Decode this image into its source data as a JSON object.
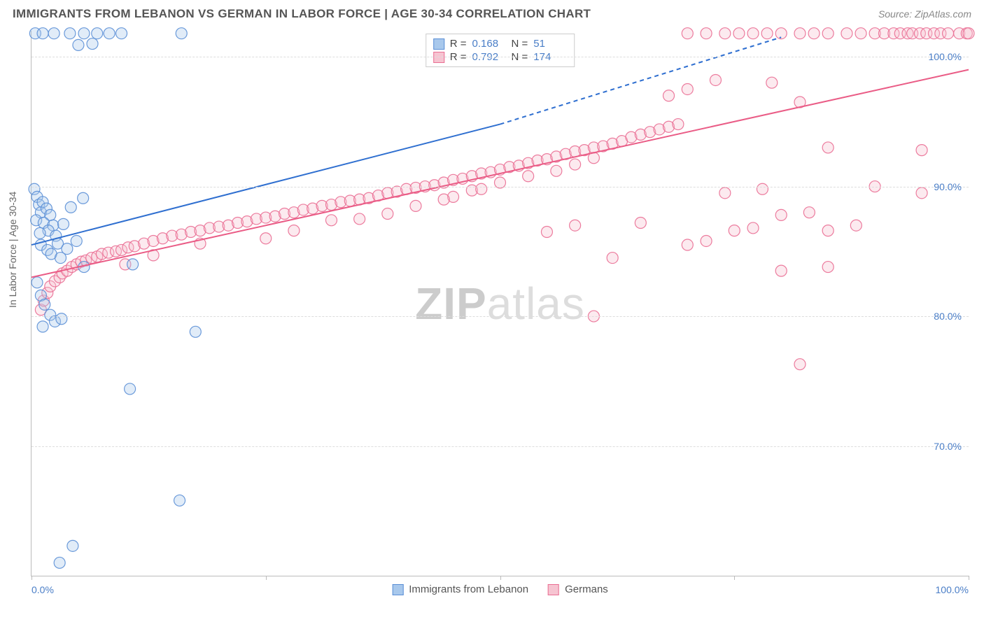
{
  "header": {
    "title": "IMMIGRANTS FROM LEBANON VS GERMAN IN LABOR FORCE | AGE 30-34 CORRELATION CHART",
    "source_prefix": "Source: ",
    "source_name": "ZipAtlas.com"
  },
  "chart": {
    "type": "scatter-correlation",
    "ylabel": "In Labor Force | Age 30-34",
    "background_color": "#ffffff",
    "grid_color": "#dddddd",
    "axis_color": "#bbbbbb",
    "tick_label_color": "#4a7ec7",
    "x_domain": [
      0,
      100
    ],
    "y_domain": [
      60,
      102
    ],
    "x_ticks": [
      0,
      25,
      50,
      75,
      100
    ],
    "x_tick_labels": {
      "0": "0.0%",
      "100": "100.0%"
    },
    "y_ticks": [
      70,
      80,
      90,
      100
    ],
    "y_tick_labels": {
      "70": "70.0%",
      "80": "80.0%",
      "90": "90.0%",
      "100": "100.0%"
    },
    "marker_radius": 8,
    "marker_fill_opacity": 0.35,
    "marker_stroke_opacity": 0.9,
    "line_width": 2,
    "series": {
      "lebanon": {
        "label": "Immigrants from Lebanon",
        "color_fill": "#a8c8ec",
        "color_stroke": "#5b8fd6",
        "line_color": "#2f6fd0",
        "R": "0.168",
        "N": "51",
        "trend_solid": [
          [
            0,
            85.5
          ],
          [
            50,
            94.8
          ]
        ],
        "trend_dashed": [
          [
            50,
            94.8
          ],
          [
            80,
            101.5
          ]
        ],
        "points": [
          [
            0.4,
            101.8
          ],
          [
            1.2,
            101.8
          ],
          [
            2.4,
            101.8
          ],
          [
            4.1,
            101.8
          ],
          [
            5.6,
            101.8
          ],
          [
            7.0,
            101.8
          ],
          [
            8.3,
            101.8
          ],
          [
            9.6,
            101.8
          ],
          [
            16.0,
            101.8
          ],
          [
            5.0,
            100.9
          ],
          [
            6.5,
            101.0
          ],
          [
            0.3,
            89.8
          ],
          [
            0.6,
            89.2
          ],
          [
            0.8,
            88.6
          ],
          [
            1.2,
            88.8
          ],
          [
            1.0,
            88.0
          ],
          [
            1.6,
            88.3
          ],
          [
            2.0,
            87.8
          ],
          [
            0.5,
            87.4
          ],
          [
            1.3,
            87.2
          ],
          [
            2.3,
            87.0
          ],
          [
            1.8,
            86.6
          ],
          [
            0.9,
            86.4
          ],
          [
            2.6,
            86.2
          ],
          [
            3.4,
            87.1
          ],
          [
            4.2,
            88.4
          ],
          [
            5.5,
            89.1
          ],
          [
            1.0,
            85.5
          ],
          [
            1.7,
            85.1
          ],
          [
            2.1,
            84.8
          ],
          [
            2.8,
            85.6
          ],
          [
            3.1,
            84.5
          ],
          [
            3.8,
            85.2
          ],
          [
            4.8,
            85.8
          ],
          [
            0.6,
            82.6
          ],
          [
            5.6,
            83.8
          ],
          [
            1.0,
            81.6
          ],
          [
            1.4,
            80.9
          ],
          [
            2.0,
            80.1
          ],
          [
            2.5,
            79.6
          ],
          [
            1.2,
            79.2
          ],
          [
            3.2,
            79.8
          ],
          [
            10.8,
            84.0
          ],
          [
            17.5,
            78.8
          ],
          [
            10.5,
            74.4
          ],
          [
            15.8,
            65.8
          ],
          [
            4.4,
            62.3
          ],
          [
            3.0,
            61.0
          ]
        ]
      },
      "german": {
        "label": "Germans",
        "color_fill": "#f6c4d1",
        "color_stroke": "#ea6e93",
        "line_color": "#ea5c86",
        "R": "0.792",
        "N": "174",
        "trend_solid": [
          [
            0,
            83.0
          ],
          [
            100,
            99.0
          ]
        ],
        "points": [
          [
            1,
            80.5
          ],
          [
            1.3,
            81.2
          ],
          [
            1.7,
            81.8
          ],
          [
            2,
            82.3
          ],
          [
            2.5,
            82.7
          ],
          [
            3,
            83.0
          ],
          [
            3.3,
            83.3
          ],
          [
            3.8,
            83.5
          ],
          [
            4.3,
            83.8
          ],
          [
            4.8,
            84.0
          ],
          [
            5.3,
            84.2
          ],
          [
            5.8,
            84.3
          ],
          [
            6.4,
            84.5
          ],
          [
            7,
            84.6
          ],
          [
            7.5,
            84.8
          ],
          [
            8.2,
            84.9
          ],
          [
            9,
            85.0
          ],
          [
            9.6,
            85.1
          ],
          [
            10.3,
            85.3
          ],
          [
            11,
            85.4
          ],
          [
            12,
            85.6
          ],
          [
            13,
            85.8
          ],
          [
            14,
            86.0
          ],
          [
            15,
            86.2
          ],
          [
            16,
            86.3
          ],
          [
            17,
            86.5
          ],
          [
            18,
            86.6
          ],
          [
            19,
            86.8
          ],
          [
            20,
            86.9
          ],
          [
            21,
            87.0
          ],
          [
            22,
            87.2
          ],
          [
            23,
            87.3
          ],
          [
            24,
            87.5
          ],
          [
            25,
            87.6
          ],
          [
            26,
            87.7
          ],
          [
            27,
            87.9
          ],
          [
            28,
            88.0
          ],
          [
            29,
            88.2
          ],
          [
            30,
            88.3
          ],
          [
            31,
            88.5
          ],
          [
            32,
            88.6
          ],
          [
            33,
            88.8
          ],
          [
            34,
            88.9
          ],
          [
            35,
            89.0
          ],
          [
            36,
            89.1
          ],
          [
            37,
            89.3
          ],
          [
            38,
            89.5
          ],
          [
            39,
            89.6
          ],
          [
            40,
            89.8
          ],
          [
            41,
            89.9
          ],
          [
            42,
            90.0
          ],
          [
            43,
            90.1
          ],
          [
            44,
            90.3
          ],
          [
            45,
            90.5
          ],
          [
            46,
            90.6
          ],
          [
            47,
            90.8
          ],
          [
            48,
            91.0
          ],
          [
            49,
            91.1
          ],
          [
            50,
            91.3
          ],
          [
            51,
            91.5
          ],
          [
            52,
            91.6
          ],
          [
            53,
            91.8
          ],
          [
            54,
            92.0
          ],
          [
            55,
            92.1
          ],
          [
            56,
            92.3
          ],
          [
            57,
            92.5
          ],
          [
            58,
            92.7
          ],
          [
            59,
            92.8
          ],
          [
            60,
            93.0
          ],
          [
            61,
            93.1
          ],
          [
            62,
            93.3
          ],
          [
            63,
            93.5
          ],
          [
            64,
            93.8
          ],
          [
            65,
            94.0
          ],
          [
            66,
            94.2
          ],
          [
            67,
            94.4
          ],
          [
            68,
            94.6
          ],
          [
            69,
            94.8
          ],
          [
            45,
            89.2
          ],
          [
            47,
            89.7
          ],
          [
            50,
            90.3
          ],
          [
            53,
            90.8
          ],
          [
            56,
            91.2
          ],
          [
            58,
            91.7
          ],
          [
            60,
            92.2
          ],
          [
            35,
            87.5
          ],
          [
            38,
            87.9
          ],
          [
            41,
            88.5
          ],
          [
            44,
            89.0
          ],
          [
            48,
            89.8
          ],
          [
            25,
            86.0
          ],
          [
            28,
            86.6
          ],
          [
            32,
            87.4
          ],
          [
            10,
            84.0
          ],
          [
            13,
            84.7
          ],
          [
            18,
            85.6
          ],
          [
            55,
            86.5
          ],
          [
            58,
            87.0
          ],
          [
            65,
            87.2
          ],
          [
            62,
            84.5
          ],
          [
            70,
            85.5
          ],
          [
            72,
            85.8
          ],
          [
            75,
            86.6
          ],
          [
            77,
            86.8
          ],
          [
            74,
            89.5
          ],
          [
            78,
            89.8
          ],
          [
            80,
            87.8
          ],
          [
            83,
            88.0
          ],
          [
            85,
            86.6
          ],
          [
            88,
            87.0
          ],
          [
            60,
            80.0
          ],
          [
            80,
            83.5
          ],
          [
            85,
            83.8
          ],
          [
            82,
            76.3
          ],
          [
            68,
            97.0
          ],
          [
            70,
            97.5
          ],
          [
            73,
            98.2
          ],
          [
            79,
            98.0
          ],
          [
            82,
            96.5
          ],
          [
            85,
            93.0
          ],
          [
            90,
            90.0
          ],
          [
            95,
            92.8
          ],
          [
            95,
            89.5
          ],
          [
            87,
            101.8
          ],
          [
            88.5,
            101.8
          ],
          [
            90,
            101.8
          ],
          [
            91,
            101.8
          ],
          [
            92,
            101.8
          ],
          [
            92.7,
            101.8
          ],
          [
            93.5,
            101.8
          ],
          [
            94,
            101.8
          ],
          [
            94.8,
            101.8
          ],
          [
            95.5,
            101.8
          ],
          [
            96.3,
            101.8
          ],
          [
            97,
            101.8
          ],
          [
            97.8,
            101.8
          ],
          [
            99,
            101.8
          ],
          [
            99.8,
            101.8
          ],
          [
            100,
            101.8
          ],
          [
            70,
            101.8
          ],
          [
            72,
            101.8
          ],
          [
            74,
            101.8
          ],
          [
            75.5,
            101.8
          ],
          [
            77,
            101.8
          ],
          [
            78.5,
            101.8
          ],
          [
            80,
            101.8
          ],
          [
            82,
            101.8
          ],
          [
            83.5,
            101.8
          ],
          [
            85,
            101.8
          ]
        ]
      }
    }
  },
  "legend_top": {
    "R_label": "R =",
    "N_label": "N ="
  },
  "watermark": {
    "zip": "ZIP",
    "atlas": "atlas"
  }
}
